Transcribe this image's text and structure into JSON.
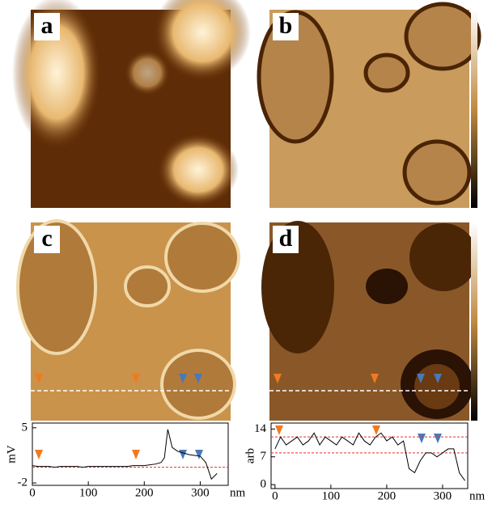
{
  "panels": {
    "labels": [
      "a",
      "b",
      "c",
      "d"
    ]
  },
  "chart_data": [
    {
      "type": "line",
      "y_label": "mV",
      "x_label": "nm",
      "x": [
        0,
        10,
        20,
        30,
        40,
        50,
        60,
        70,
        80,
        90,
        100,
        110,
        120,
        130,
        140,
        150,
        160,
        170,
        180,
        190,
        200,
        210,
        220,
        230,
        236,
        242,
        250,
        260,
        270,
        280,
        290,
        300,
        310,
        320,
        330
      ],
      "series": [
        {
          "color": "#000000",
          "values": [
            0.2,
            0.1,
            0.1,
            0.1,
            0.0,
            0.1,
            0.1,
            0.1,
            0.1,
            0.0,
            0.1,
            0.1,
            0.1,
            0.1,
            0.1,
            0.1,
            0.1,
            0.1,
            0.2,
            0.2,
            0.2,
            0.3,
            0.4,
            0.6,
            1.2,
            4.8,
            2.5,
            2.0,
            1.8,
            1.6,
            1.5,
            1.4,
            0.6,
            -1.5,
            -0.8
          ]
        }
      ],
      "ref_lines": [
        0
      ],
      "ref_color": "#e03030",
      "xlim": [
        0,
        350
      ],
      "ylim": [
        -2.3,
        5.6
      ],
      "xticks": [
        0,
        100,
        200,
        300
      ],
      "yticks": [
        -2,
        5
      ]
    },
    {
      "type": "line",
      "y_label": "arb",
      "x_label": "nm",
      "x": [
        0,
        10,
        20,
        30,
        40,
        50,
        60,
        70,
        80,
        90,
        100,
        110,
        120,
        130,
        140,
        150,
        160,
        170,
        180,
        190,
        200,
        210,
        220,
        230,
        240,
        250,
        260,
        270,
        280,
        290,
        300,
        310,
        320,
        330,
        340
      ],
      "series": [
        {
          "color": "#000000",
          "values": [
            9,
            12,
            10,
            11,
            12,
            10,
            11,
            13,
            10,
            12,
            11,
            10,
            12,
            11,
            10,
            13,
            11,
            10,
            12,
            13,
            11,
            12,
            10,
            11,
            4,
            3,
            6,
            8,
            8,
            7,
            8,
            9,
            9,
            3,
            1
          ]
        }
      ],
      "ref_lines": [
        12,
        8
      ],
      "ref_color": "#e03030",
      "xlim": [
        -7,
        345
      ],
      "ylim": [
        -1,
        15.5
      ],
      "xticks": [
        0,
        100,
        200,
        300
      ],
      "yticks": [
        0,
        7,
        14
      ]
    }
  ]
}
